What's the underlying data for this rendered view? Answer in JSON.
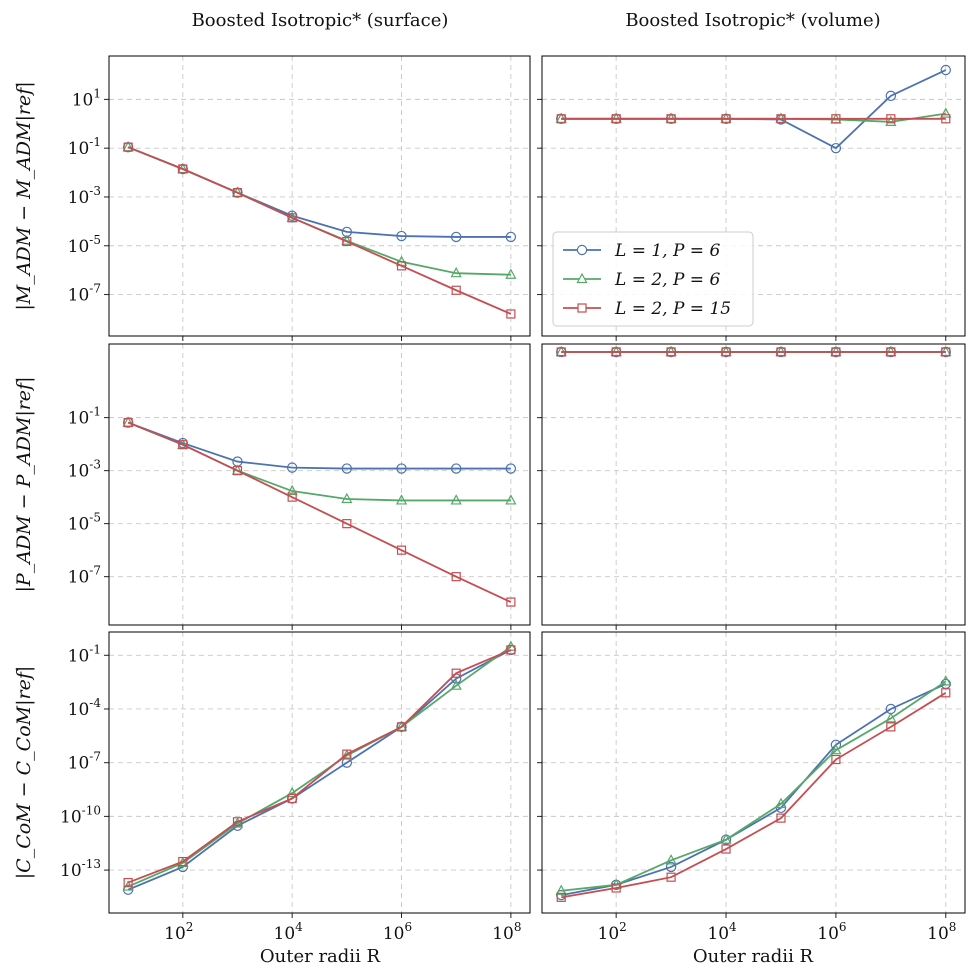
{
  "column_titles": [
    "Boosted Isotropic* (surface)",
    "Boosted Isotropic* (volume)"
  ],
  "row_ylabels": [
    "|M_ADM − M_ADM|ref|",
    "|P_ADM − P_ADM|ref|",
    "|C_CoM − C_CoM|ref|"
  ],
  "xlabel": "Outer radii R",
  "x_tick_labels": [
    "10^2",
    "10^4",
    "10^6",
    "10^8"
  ],
  "legend": {
    "placement": "lower-left of top-right panel",
    "entries": [
      "L = 1, P = 6",
      "L = 2, P = 6",
      "L = 2, P = 15"
    ]
  },
  "colors": {
    "L1P6": "#4c72b0",
    "L2P6": "#55a868",
    "L2P15": "#c44e52"
  },
  "chart_data": [
    {
      "type": "line",
      "panel": "top-left",
      "yscale": "log",
      "title": "Boosted Isotropic* (surface)",
      "ylabel": "|M_ADM − M_ADM|ref|",
      "xlabel": "",
      "xscale": "log",
      "x": [
        10,
        100,
        1000,
        10000,
        100000,
        1000000,
        10000000,
        100000000
      ],
      "ylim": [
        2e-09,
        600
      ],
      "yticks": [
        "10^1",
        "10^-1",
        "10^-3",
        "10^-5",
        "10^-7"
      ],
      "grid": true,
      "series": [
        {
          "name": "L = 1, P = 6",
          "values": [
            0.11,
            0.014,
            0.0015,
            0.00017,
            3.7e-05,
            2.5e-05,
            2.3e-05,
            2.3e-05
          ]
        },
        {
          "name": "L = 2, P = 6",
          "values": [
            0.11,
            0.014,
            0.0015,
            0.00014,
            1.6e-05,
            2.2e-06,
            7.5e-07,
            6.5e-07
          ]
        },
        {
          "name": "L = 2, P = 15",
          "values": [
            0.11,
            0.014,
            0.0015,
            0.00014,
            1.5e-05,
            1.5e-06,
            1.5e-07,
            1.6e-08
          ]
        }
      ]
    },
    {
      "type": "line",
      "panel": "top-right",
      "yscale": "log",
      "title": "Boosted Isotropic* (volume)",
      "ylabel": "",
      "xlabel": "",
      "xscale": "log",
      "x": [
        10,
        100,
        1000,
        10000,
        100000,
        1000000,
        10000000,
        100000000
      ],
      "ylim": [
        2e-09,
        600
      ],
      "grid": true,
      "series": [
        {
          "name": "L = 1, P = 6",
          "values": [
            1.6,
            1.6,
            1.6,
            1.6,
            1.5,
            0.1,
            14,
            160
          ]
        },
        {
          "name": "L = 2, P = 6",
          "values": [
            1.6,
            1.6,
            1.6,
            1.6,
            1.6,
            1.5,
            1.2,
            2.6
          ]
        },
        {
          "name": "L = 2, P = 15",
          "values": [
            1.6,
            1.6,
            1.6,
            1.6,
            1.6,
            1.6,
            1.6,
            1.6
          ]
        }
      ]
    },
    {
      "type": "line",
      "panel": "middle-left",
      "yscale": "log",
      "title": "",
      "ylabel": "|P_ADM − P_ADM|ref|",
      "xlabel": "",
      "xscale": "log",
      "x": [
        10,
        100,
        1000,
        10000,
        100000,
        1000000,
        10000000,
        100000000
      ],
      "ylim": [
        1.5e-09,
        60
      ],
      "yticks": [
        "10^-1",
        "10^-3",
        "10^-5",
        "10^-7"
      ],
      "grid": true,
      "series": [
        {
          "name": "L = 1, P = 6",
          "values": [
            0.065,
            0.011,
            0.0022,
            0.0013,
            0.0012,
            0.0012,
            0.0012,
            0.0012
          ]
        },
        {
          "name": "L = 2, P = 6",
          "values": [
            0.065,
            0.0095,
            0.001,
            0.00017,
            8.5e-05,
            7.5e-05,
            7.5e-05,
            7.5e-05
          ]
        },
        {
          "name": "L = 2, P = 15",
          "values": [
            0.065,
            0.0095,
            0.001,
            0.0001,
            1e-05,
            1e-06,
            1e-07,
            1.1e-08
          ]
        }
      ]
    },
    {
      "type": "line",
      "panel": "middle-right",
      "yscale": "log",
      "title": "",
      "ylabel": "",
      "xlabel": "",
      "xscale": "log",
      "x": [
        10,
        100,
        1000,
        10000,
        100000,
        1000000,
        10000000,
        100000000
      ],
      "ylim": [
        1.5e-09,
        60
      ],
      "grid": true,
      "series": [
        {
          "name": "L = 1, P = 6",
          "values": [
            30,
            30,
            30,
            30,
            30,
            30,
            30,
            30
          ]
        },
        {
          "name": "L = 2, P = 6",
          "values": [
            30,
            30,
            30,
            30,
            30,
            30,
            30,
            30
          ]
        },
        {
          "name": "L = 2, P = 15",
          "values": [
            30,
            30,
            30,
            30,
            30,
            30,
            30,
            30
          ]
        }
      ]
    },
    {
      "type": "line",
      "panel": "bottom-left",
      "yscale": "log",
      "title": "",
      "ylabel": "|C_CoM − C_CoM|ref|",
      "xlabel": "Outer radii R",
      "xscale": "log",
      "x": [
        10,
        100,
        1000,
        10000,
        100000,
        1000000,
        10000000,
        100000000
      ],
      "ylim": [
        4e-16,
        2
      ],
      "yticks": [
        "10^-1",
        "10^-4",
        "10^-7",
        "10^-10",
        "10^-13"
      ],
      "grid": true,
      "series": [
        {
          "name": "L = 1, P = 6",
          "values": [
            8e-15,
            1.5e-13,
            3e-11,
            1e-09,
            1e-07,
            1e-05,
            0.005,
            0.2
          ]
        },
        {
          "name": "L = 2, P = 6",
          "values": [
            1.2e-14,
            2.5e-13,
            4e-11,
            2e-09,
            2.5e-07,
            1e-05,
            0.002,
            0.3
          ]
        },
        {
          "name": "L = 2, P = 15",
          "values": [
            2e-14,
            3e-13,
            5e-11,
            1e-09,
            3e-07,
            1e-05,
            0.01,
            0.2
          ]
        }
      ]
    },
    {
      "type": "line",
      "panel": "bottom-right",
      "yscale": "log",
      "title": "",
      "ylabel": "",
      "xlabel": "Outer radii R",
      "xscale": "log",
      "x": [
        10,
        100,
        1000,
        10000,
        100000,
        1000000,
        10000000,
        100000000
      ],
      "ylim": [
        4e-16,
        2
      ],
      "grid": true,
      "series": [
        {
          "name": "L = 1, P = 6",
          "values": [
            4e-15,
            1.5e-14,
            1.5e-13,
            5e-12,
            3e-10,
            1e-06,
            0.0001,
            0.0025
          ]
        },
        {
          "name": "L = 2, P = 6",
          "values": [
            7e-15,
            1.5e-14,
            3.5e-13,
            5e-12,
            5e-10,
            5e-07,
            3e-05,
            0.0035
          ]
        },
        {
          "name": "L = 2, P = 15",
          "values": [
            3e-15,
            1e-14,
            4e-14,
            1.5e-12,
            8e-11,
            1.5e-07,
            1e-05,
            0.0008
          ]
        }
      ]
    }
  ]
}
